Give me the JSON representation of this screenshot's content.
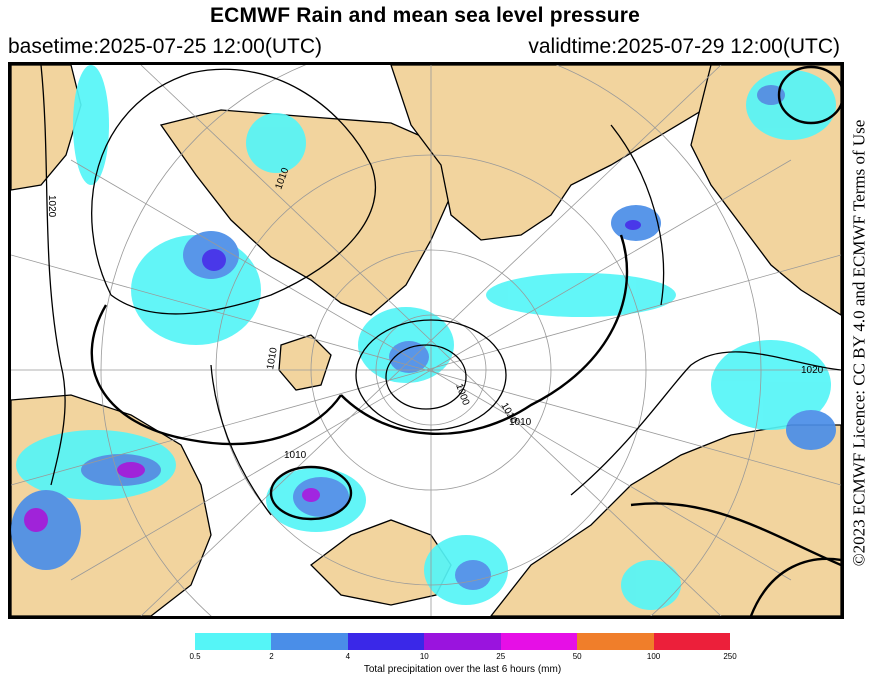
{
  "header": {
    "title": "ECMWF Rain and mean sea level pressure",
    "basetime": "basetime:2025-07-25 12:00(UTC)",
    "validtime": "validtime:2025-07-29 12:00(UTC)"
  },
  "licence": "©2023 ECMWF Licence: CC BY 4.0 and ECMWF Terms of Use",
  "map": {
    "isobar_labels": [
      "1020",
      "1010",
      "1010",
      "1010",
      "1000",
      "1010",
      "1010",
      "1020"
    ],
    "colors": {
      "land": "#f2d49e",
      "sea": "#ffffff",
      "coast": "#000000",
      "isobar": "#000000",
      "grid": "#999999"
    }
  },
  "colorbar": {
    "ticks": [
      "0.5",
      "2",
      "4",
      "10",
      "25",
      "50",
      "100",
      "250"
    ],
    "colors": [
      "#55f5f7",
      "#4a8ee8",
      "#3a28e8",
      "#9a14de",
      "#e60fe6",
      "#f07e2a",
      "#ec1f3a"
    ],
    "label": "Total precipitation over the last 6 hours (mm)"
  }
}
